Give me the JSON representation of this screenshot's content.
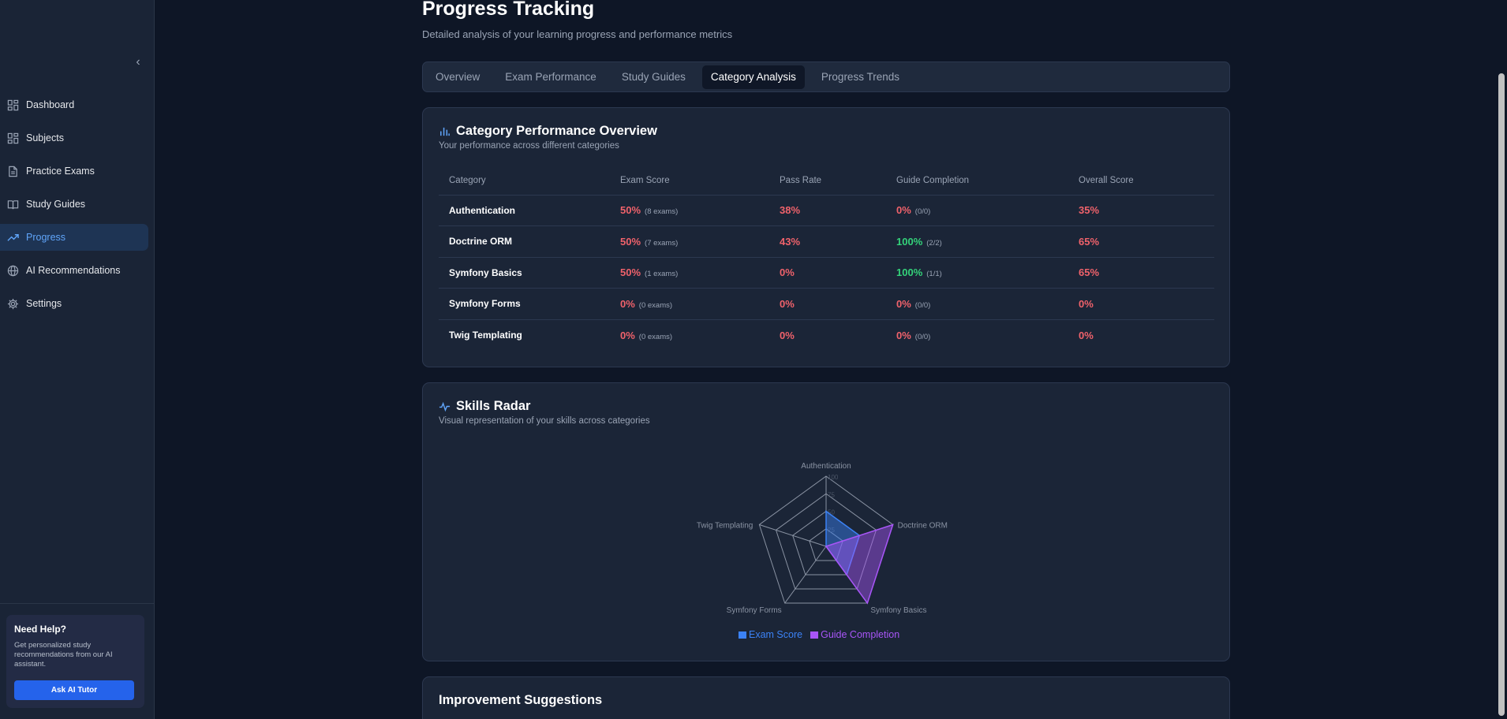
{
  "sidebar": {
    "items": [
      {
        "label": "Dashboard",
        "icon": "dashboard-grid-icon"
      },
      {
        "label": "Subjects",
        "icon": "subjects-grid-icon"
      },
      {
        "label": "Practice Exams",
        "icon": "document-icon"
      },
      {
        "label": "Study Guides",
        "icon": "book-icon"
      },
      {
        "label": "Progress",
        "icon": "trending-up-icon",
        "active": true
      },
      {
        "label": "AI Recommendations",
        "icon": "globe-icon"
      },
      {
        "label": "Settings",
        "icon": "gear-icon"
      }
    ],
    "help": {
      "title": "Need Help?",
      "text": "Get personalized study recommendations from our AI assistant.",
      "button": "Ask AI Tutor"
    }
  },
  "header": {
    "title": "Progress Tracking",
    "subtitle": "Detailed analysis of your learning progress and performance metrics"
  },
  "tabs": [
    "Overview",
    "Exam Performance",
    "Study Guides",
    "Category Analysis",
    "Progress Trends"
  ],
  "active_tab": "Category Analysis",
  "category_card": {
    "title": "Category Performance Overview",
    "subtitle": "Your performance across different categories",
    "columns": [
      "Category",
      "Exam Score",
      "Pass Rate",
      "Guide Completion",
      "Overall Score"
    ],
    "rows": [
      {
        "category": "Authentication",
        "exam": "50%",
        "exam_note": "(8 exams)",
        "pass": "38%",
        "guide": "0%",
        "guide_note": "(0/0)",
        "overall": "35%"
      },
      {
        "category": "Doctrine ORM",
        "exam": "50%",
        "exam_note": "(7 exams)",
        "pass": "43%",
        "guide": "100%",
        "guide_note": "(2/2)",
        "overall": "65%"
      },
      {
        "category": "Symfony Basics",
        "exam": "50%",
        "exam_note": "(1 exams)",
        "pass": "0%",
        "guide": "100%",
        "guide_note": "(1/1)",
        "overall": "65%"
      },
      {
        "category": "Symfony Forms",
        "exam": "0%",
        "exam_note": "(0 exams)",
        "pass": "0%",
        "guide": "0%",
        "guide_note": "(0/0)",
        "overall": "0%"
      },
      {
        "category": "Twig Templating",
        "exam": "0%",
        "exam_note": "(0 exams)",
        "pass": "0%",
        "guide": "0%",
        "guide_note": "(0/0)",
        "overall": "0%"
      }
    ]
  },
  "radar_card": {
    "title": "Skills Radar",
    "subtitle": "Visual representation of your skills across categories"
  },
  "suggestions_card": {
    "title": "Improvement Suggestions"
  },
  "colors": {
    "exam": "#3b82f6",
    "guide": "#a855f7",
    "red": "#f0626b",
    "green": "#34d37a"
  },
  "chart_data": {
    "type": "radar",
    "categories": [
      "Authentication",
      "Doctrine ORM",
      "Symfony Basics",
      "Symfony Forms",
      "Twig Templating"
    ],
    "series": [
      {
        "name": "Exam Score",
        "values": [
          50,
          50,
          50,
          0,
          0
        ]
      },
      {
        "name": "Guide Completion",
        "values": [
          0,
          100,
          100,
          0,
          0
        ]
      }
    ],
    "range": [
      0,
      100
    ],
    "grid_levels": [
      25,
      50,
      75,
      100
    ],
    "tick_labels": [
      "25",
      "50",
      "75",
      "100"
    ],
    "legend": "bottom"
  }
}
